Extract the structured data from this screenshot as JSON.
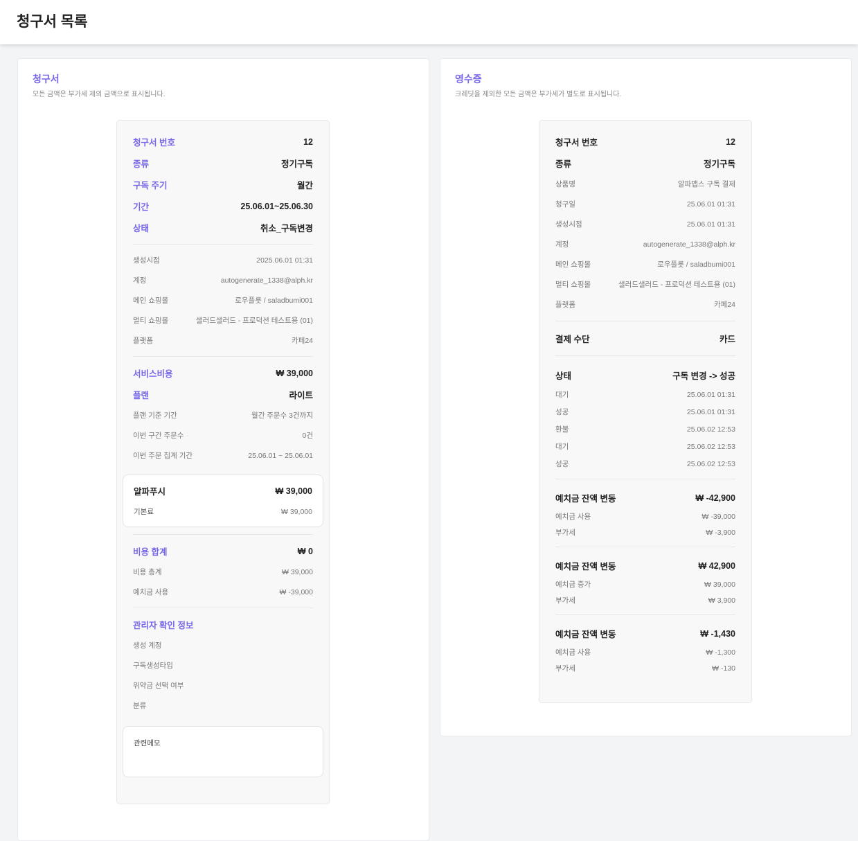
{
  "header": {
    "title": "청구서 목록"
  },
  "accent_color": "#7566e8",
  "invoice": {
    "title": "청구서",
    "subtitle": "모든 금액은 부가세 제외 금액으로 표시됩니다.",
    "blocks": [
      {
        "type": "rows",
        "rows": [
          {
            "style": "accent",
            "label": "청구서 번호",
            "value": "12"
          },
          {
            "style": "accent",
            "label": "종류",
            "value": "정기구독"
          },
          {
            "style": "accent",
            "label": "구독 주기",
            "value": "월간"
          },
          {
            "style": "accent",
            "label": "기간",
            "value": "25.06.01~25.06.30"
          },
          {
            "style": "accent",
            "label": "상태",
            "value": "취소_구독변경"
          }
        ]
      },
      {
        "type": "divider"
      },
      {
        "type": "rows",
        "rows": [
          {
            "style": "muted",
            "label": "생성시점",
            "value": "2025.06.01 01:31"
          },
          {
            "style": "muted",
            "label": "계정",
            "value": "autogenerate_1338@alph.kr"
          },
          {
            "style": "muted",
            "label": "메인 쇼핑몰",
            "value": "로우플릇 / saladbumi001"
          },
          {
            "style": "muted",
            "label": "멀티 쇼핑몰",
            "value": "샐러드샐러드 - 프로덕션 테스트용 (01)"
          },
          {
            "style": "muted",
            "label": "플랫폼",
            "value": "카페24"
          }
        ]
      },
      {
        "type": "divider"
      },
      {
        "type": "rows",
        "rows": [
          {
            "style": "accent",
            "label": "서비스비용",
            "value": "₩ 39,000"
          },
          {
            "style": "accent",
            "label": "플랜",
            "value": "라이트"
          },
          {
            "style": "muted",
            "label": "플랜 기준 기간",
            "value": "월간 주문수 3건까지"
          },
          {
            "style": "muted",
            "label": "이번 구간 주문수",
            "value": "0건"
          },
          {
            "style": "muted",
            "label": "이번 주문 집계 기간",
            "value": "25.06.01 ~ 25.06.01"
          }
        ]
      },
      {
        "type": "box",
        "rows": [
          {
            "style": "strong",
            "label": "알파푸시",
            "value": "₩ 39,000"
          },
          {
            "style": "muted",
            "label": "기본료",
            "value": "₩ 39,000"
          }
        ]
      },
      {
        "type": "divider"
      },
      {
        "type": "rows",
        "rows": [
          {
            "style": "accent",
            "label": "비용 합계",
            "value": "₩ 0"
          },
          {
            "style": "muted",
            "label": "비용 총계",
            "value": "₩ 39,000"
          },
          {
            "style": "muted",
            "label": "예치금 사용",
            "value": "₩ -39,000"
          }
        ]
      },
      {
        "type": "divider"
      },
      {
        "type": "rows",
        "rows": [
          {
            "style": "accent",
            "label": "관리자 확인 정보",
            "value": ""
          },
          {
            "style": "muted",
            "label": "생성 계정",
            "value": ""
          },
          {
            "style": "muted",
            "label": "구독생성타입",
            "value": ""
          },
          {
            "style": "muted",
            "label": "위약금 선택 여부",
            "value": ""
          },
          {
            "style": "muted",
            "label": "분류",
            "value": ""
          }
        ]
      },
      {
        "type": "memo",
        "label": "관련메모"
      }
    ]
  },
  "receipt": {
    "title": "영수증",
    "subtitle": "크레딧을 제외한 모든 금액은 부가세가 별도로 표시됩니다.",
    "blocks": [
      {
        "type": "rows",
        "rows": [
          {
            "style": "strong",
            "label": "청구서 번호",
            "value": "12"
          },
          {
            "style": "strong",
            "label": "종류",
            "value": "정기구독"
          },
          {
            "style": "muted",
            "label": "상품명",
            "value": "알파맵스 구독 결제"
          },
          {
            "style": "muted",
            "label": "청구일",
            "value": "25.06.01 01:31"
          },
          {
            "style": "muted",
            "label": "생성시점",
            "value": "25.06.01 01:31"
          },
          {
            "style": "muted",
            "label": "계정",
            "value": "autogenerate_1338@alph.kr"
          },
          {
            "style": "muted",
            "label": "메인 쇼핑몰",
            "value": "로우플릇 / saladbumi001"
          },
          {
            "style": "muted",
            "label": "멀티 쇼핑몰",
            "value": "샐러드샐러드 - 프로덕션 테스트용 (01)"
          },
          {
            "style": "muted",
            "label": "플랫폼",
            "value": "카페24"
          }
        ]
      },
      {
        "type": "divider"
      },
      {
        "type": "rows",
        "rows": [
          {
            "style": "strong",
            "label": "결제 수단",
            "value": "카드"
          }
        ]
      },
      {
        "type": "divider"
      },
      {
        "type": "rows",
        "kind": "status",
        "rows": [
          {
            "style": "strong",
            "label": "상태",
            "value": "구독 변경 -> 성공"
          },
          {
            "style": "muted",
            "label": "대기",
            "value": "25.06.01 01:31"
          },
          {
            "style": "muted",
            "label": "성공",
            "value": "25.06.01 01:31"
          },
          {
            "style": "muted",
            "label": "환불",
            "value": "25.06.02 12:53"
          },
          {
            "style": "muted",
            "label": "대기",
            "value": "25.06.02 12:53"
          },
          {
            "style": "muted",
            "label": "성공",
            "value": "25.06.02 12:53"
          }
        ]
      },
      {
        "type": "divider"
      },
      {
        "type": "rows",
        "kind": "dep",
        "rows": [
          {
            "style": "strong",
            "label": "예치금 잔액 변동",
            "value": "₩ -42,900"
          },
          {
            "style": "muted",
            "label": "예치금 사용",
            "value": "₩ -39,000"
          },
          {
            "style": "muted",
            "label": "부가세",
            "value": "₩ -3,900"
          }
        ]
      },
      {
        "type": "divider"
      },
      {
        "type": "rows",
        "kind": "dep",
        "rows": [
          {
            "style": "strong",
            "label": "예치금 잔액 변동",
            "value": "₩ 42,900"
          },
          {
            "style": "muted",
            "label": "예치금 증가",
            "value": "₩ 39,000"
          },
          {
            "style": "muted",
            "label": "부가세",
            "value": "₩ 3,900"
          }
        ]
      },
      {
        "type": "divider"
      },
      {
        "type": "rows",
        "kind": "dep",
        "rows": [
          {
            "style": "strong",
            "label": "예치금 잔액 변동",
            "value": "₩ -1,430"
          },
          {
            "style": "muted",
            "label": "예치금 사용",
            "value": "₩ -1,300"
          },
          {
            "style": "muted",
            "label": "부가세",
            "value": "₩ -130"
          }
        ]
      }
    ]
  }
}
